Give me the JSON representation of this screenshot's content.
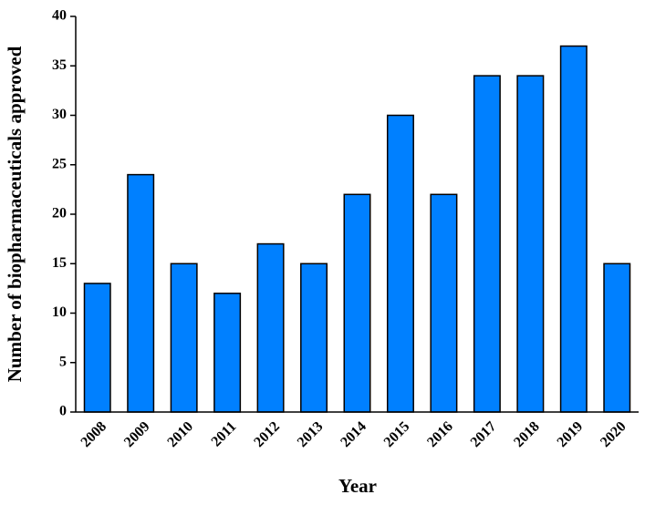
{
  "chart_data": {
    "type": "bar",
    "x_label": "Year",
    "y_label": "Number of biopharmaceuticals approved",
    "categories": [
      "2008",
      "2009",
      "2010",
      "2011",
      "2012",
      "2013",
      "2014",
      "2015",
      "2016",
      "2017",
      "2018",
      "2019",
      "2020"
    ],
    "values": [
      13,
      24,
      15,
      12,
      17,
      15,
      22,
      30,
      22,
      34,
      34,
      37,
      15
    ],
    "color": "#0080ff",
    "ylim": [
      0,
      40
    ],
    "yticks": [
      0,
      5,
      10,
      15,
      20,
      25,
      30,
      35,
      40
    ],
    "grid": false
  }
}
